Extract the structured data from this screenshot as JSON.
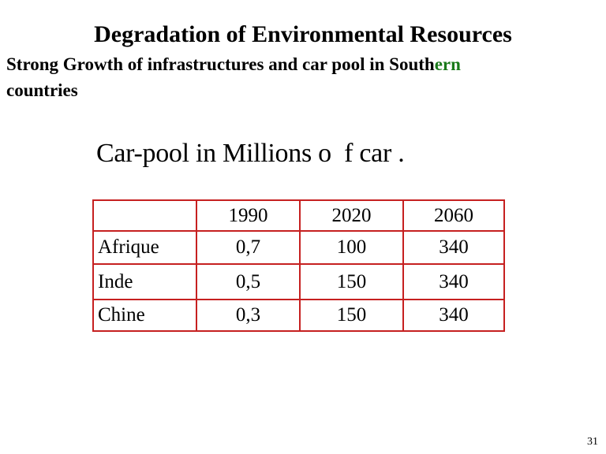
{
  "slide": {
    "title": "Degradation of  Environmental Resources",
    "subtitle_main": "Strong Growth of  infrastructures  and car pool in South",
    "subtitle_accent": "ern",
    "subtitle_line2": "countries",
    "caption": "Car-pool in Millions o  f car .",
    "page_number": "31"
  },
  "table": {
    "header": [
      "",
      "1990",
      "2020",
      "2060"
    ],
    "rows": [
      {
        "label": "Afrique",
        "values": [
          "0,7",
          "100",
          "340"
        ]
      },
      {
        "label": "Inde",
        "values": [
          "0,5",
          "150",
          "340"
        ]
      },
      {
        "label": "Chine",
        "values": [
          "0,3",
          "150",
          "340"
        ]
      }
    ]
  },
  "colors": {
    "table_outer_border": "#2230a8",
    "table_inner_border": "#c62020",
    "subtitle_accent": "#1a7a1a"
  }
}
